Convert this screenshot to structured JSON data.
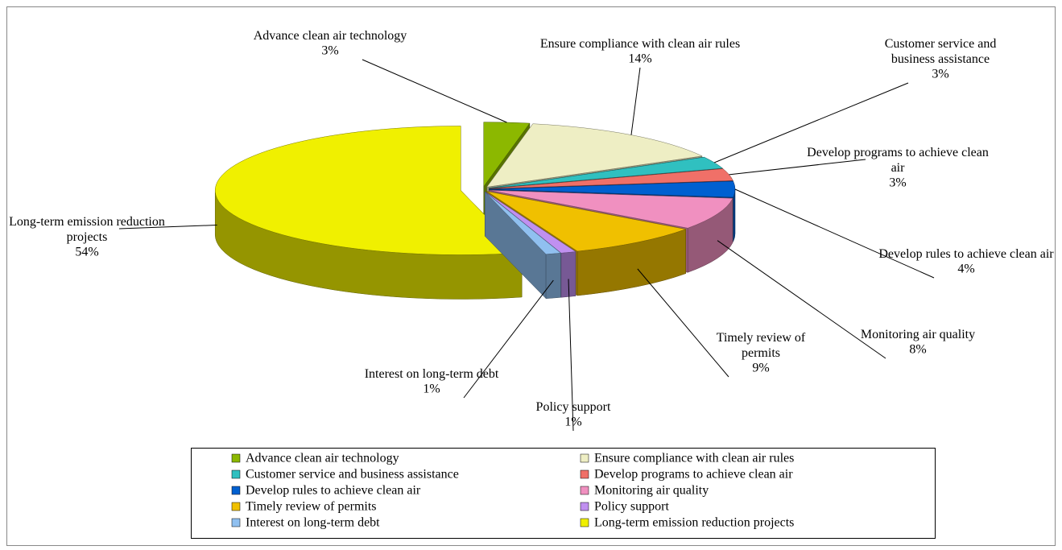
{
  "chart_data": {
    "type": "pie3d",
    "categories": [
      "Advance clean air technology",
      "Ensure compliance with clean air rules",
      "Customer service and business assistance",
      "Develop programs to achieve clean air",
      "Develop rules to achieve clean air",
      "Monitoring air quality",
      "Timely review of permits",
      "Policy support",
      "Interest on long-term debt",
      "Long-term emission reduction projects"
    ],
    "values": [
      3,
      14,
      3,
      3,
      4,
      8,
      9,
      1,
      1,
      54
    ],
    "value_labels": [
      "3%",
      "14%",
      "3%",
      "3%",
      "4%",
      "8%",
      "9%",
      "1%",
      "1%",
      "54%"
    ],
    "colors": [
      "#8cb800",
      "#eeeec4",
      "#30c0c0",
      "#f07068",
      "#0060d0",
      "#f090c0",
      "#f0c000",
      "#c090f0",
      "#90c0f0",
      "#f0f000"
    ],
    "legend": "bottom"
  }
}
